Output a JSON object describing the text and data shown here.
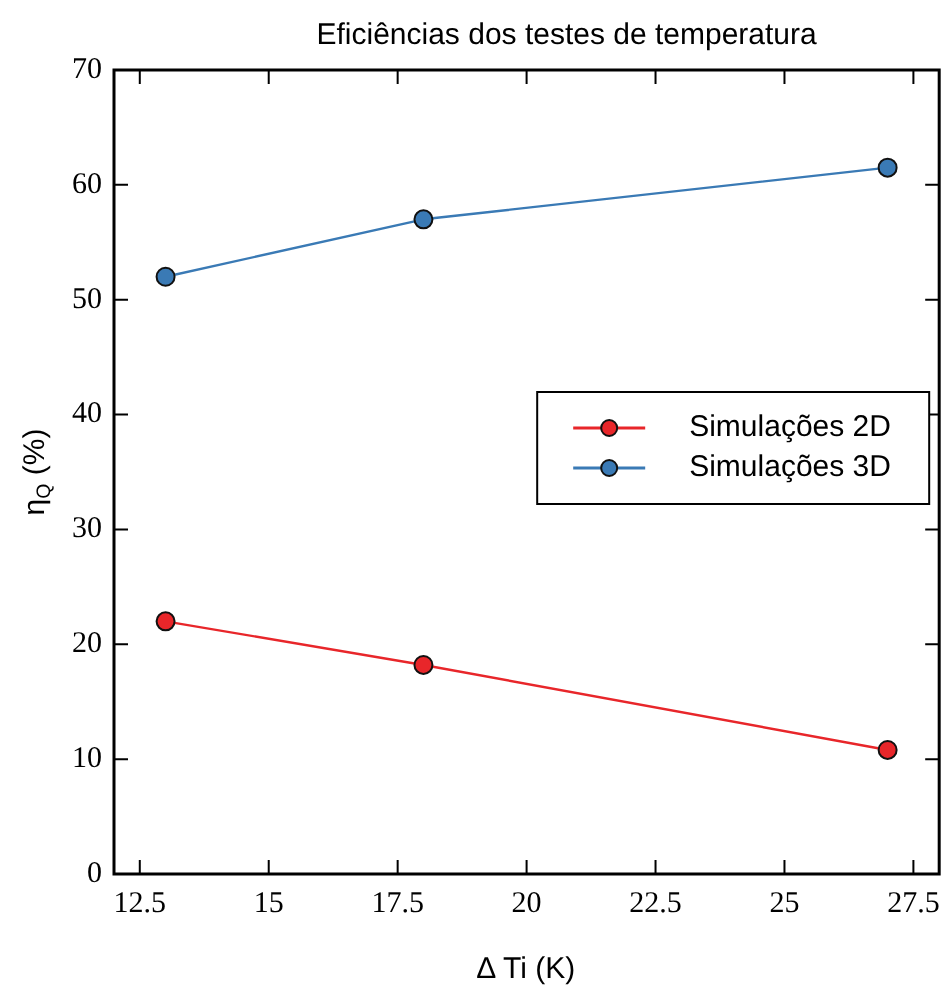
{
  "chart_data": {
    "type": "line",
    "title": "Eficiências dos testes de temperatura",
    "xlabel": "Δ Ti (K)",
    "ylabel": "η$_{Q}$ (%)",
    "x": [
      13,
      18,
      27
    ],
    "series": [
      {
        "name": "Simulações 2D",
        "color": "#e8262a",
        "values": [
          22,
          18.2,
          10.8
        ]
      },
      {
        "name": "Simulações 3D",
        "color": "#3a7ab5",
        "values": [
          52,
          57,
          61.5
        ]
      }
    ],
    "xlim": [
      12,
      28
    ],
    "xticks": [
      12.5,
      15,
      17.5,
      20,
      22.5,
      25,
      27.5
    ],
    "ylim": [
      0,
      70
    ],
    "yticks": [
      0,
      10,
      20,
      30,
      40,
      50,
      60,
      70
    ],
    "grid": false,
    "legend": "right",
    "marker": "circle",
    "line_style": "solid"
  }
}
